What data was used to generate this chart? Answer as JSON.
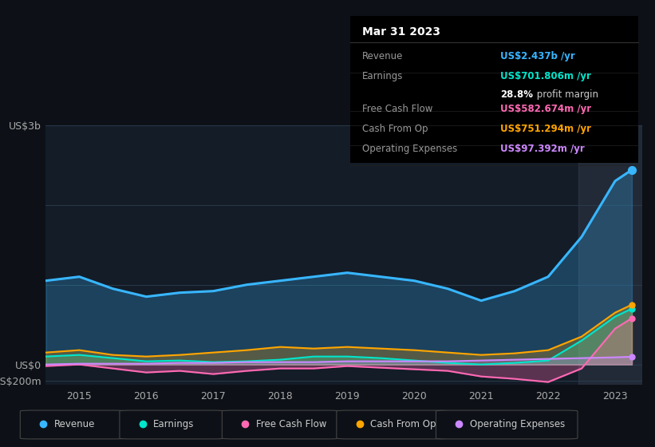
{
  "bg_color": "#0d1117",
  "plot_bg_color": "#131c27",
  "grid_color": "#2a3a4a",
  "title_date": "Mar 31 2023",
  "tooltip": {
    "Revenue": {
      "value": "US$2.437b /yr",
      "color": "#38b6ff"
    },
    "Earnings": {
      "value": "US$701.806m /yr",
      "color": "#00e5cc"
    },
    "Free Cash Flow": {
      "value": "US$582.674m /yr",
      "color": "#ff69b4"
    },
    "Cash From Op": {
      "value": "US$751.294m /yr",
      "color": "#ffa500"
    },
    "Operating Expenses": {
      "value": "US$97.392m /yr",
      "color": "#cc88ff"
    }
  },
  "ylabel_top": "US$3b",
  "ylabel_zero": "US$0",
  "ylabel_bottom": "-US$200m",
  "x_labels": [
    "2015",
    "2016",
    "2017",
    "2018",
    "2019",
    "2020",
    "2021",
    "2022",
    "2023"
  ],
  "legend": [
    {
      "label": "Revenue",
      "color": "#38b6ff"
    },
    {
      "label": "Earnings",
      "color": "#00e5cc"
    },
    {
      "label": "Free Cash Flow",
      "color": "#ff69b4"
    },
    {
      "label": "Cash From Op",
      "color": "#ffa500"
    },
    {
      "label": "Operating Expenses",
      "color": "#cc88ff"
    }
  ],
  "series": {
    "x": [
      2014.5,
      2015.0,
      2015.5,
      2016.0,
      2016.5,
      2017.0,
      2017.5,
      2018.0,
      2018.5,
      2019.0,
      2019.5,
      2020.0,
      2020.5,
      2021.0,
      2021.5,
      2022.0,
      2022.5,
      2023.0,
      2023.25
    ],
    "Revenue": [
      1.05,
      1.1,
      0.95,
      0.85,
      0.9,
      0.92,
      1.0,
      1.05,
      1.1,
      1.15,
      1.1,
      1.05,
      0.95,
      0.8,
      0.92,
      1.1,
      1.6,
      2.3,
      2.44
    ],
    "Earnings": [
      0.1,
      0.12,
      0.08,
      0.04,
      0.05,
      0.03,
      0.04,
      0.06,
      0.1,
      0.1,
      0.08,
      0.05,
      0.02,
      0.0,
      0.02,
      0.05,
      0.3,
      0.6,
      0.7
    ],
    "FreeCashFlow": [
      -0.02,
      0.0,
      -0.05,
      -0.1,
      -0.08,
      -0.12,
      -0.08,
      -0.05,
      -0.05,
      -0.02,
      -0.04,
      -0.06,
      -0.08,
      -0.15,
      -0.18,
      -0.22,
      -0.05,
      0.45,
      0.58
    ],
    "CashFromOp": [
      0.15,
      0.18,
      0.12,
      0.1,
      0.12,
      0.15,
      0.18,
      0.22,
      0.2,
      0.22,
      0.2,
      0.18,
      0.15,
      0.12,
      0.14,
      0.18,
      0.35,
      0.65,
      0.75
    ],
    "OpExpenses": [
      0.0,
      0.01,
      0.01,
      0.01,
      0.02,
      0.02,
      0.03,
      0.03,
      0.03,
      0.04,
      0.04,
      0.04,
      0.04,
      0.05,
      0.06,
      0.07,
      0.08,
      0.09,
      0.097
    ]
  },
  "ylim": [
    -0.25,
    2.75
  ],
  "xlim": [
    2014.5,
    2023.4
  ],
  "yticks": [
    -0.2,
    0.0,
    1.0,
    2.0,
    3.0
  ],
  "hgrid_vals": [
    -0.2,
    0.0,
    1.0,
    2.0,
    3.0
  ]
}
